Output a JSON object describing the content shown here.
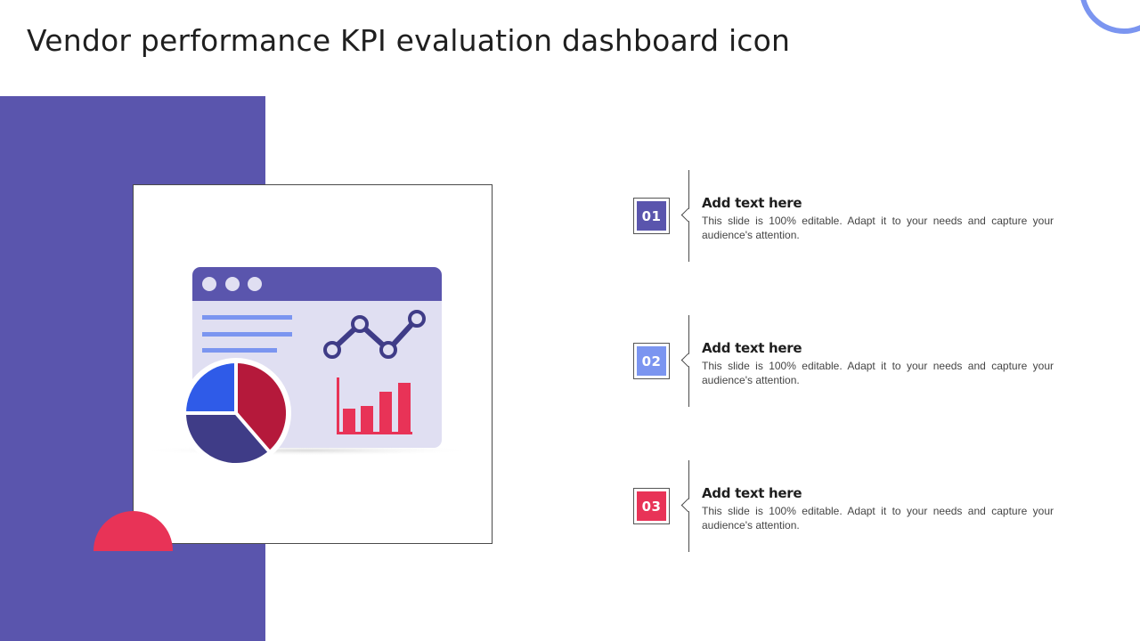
{
  "slide": {
    "title": "Vendor performance KPI evaluation dashboard icon"
  },
  "colors": {
    "purple": "#5a55ad",
    "light_blue": "#7b95f0",
    "red": "#e83357",
    "navy": "#3f3c87",
    "panel_lavender": "#e0dff2",
    "pie_blue": "#2f5be8",
    "pie_red": "#b5193b"
  },
  "icons": {
    "illustration": "dashboard-window-icon",
    "pie": "pie-chart-icon",
    "line": "line-chart-icon",
    "bars": "bar-chart-icon"
  },
  "items": [
    {
      "number": "01",
      "color": "#5a55ad",
      "title": "Add text here",
      "description": "This slide is 100% editable. Adapt it to your needs and capture your audience's attention."
    },
    {
      "number": "02",
      "color": "#7b95f0",
      "title": "Add text here",
      "description": "This slide is 100% editable. Adapt it to your needs and capture your audience's attention."
    },
    {
      "number": "03",
      "color": "#e83357",
      "title": "Add text here",
      "description": "This slide is 100% editable. Adapt it to your needs and capture your audience's attention."
    }
  ]
}
